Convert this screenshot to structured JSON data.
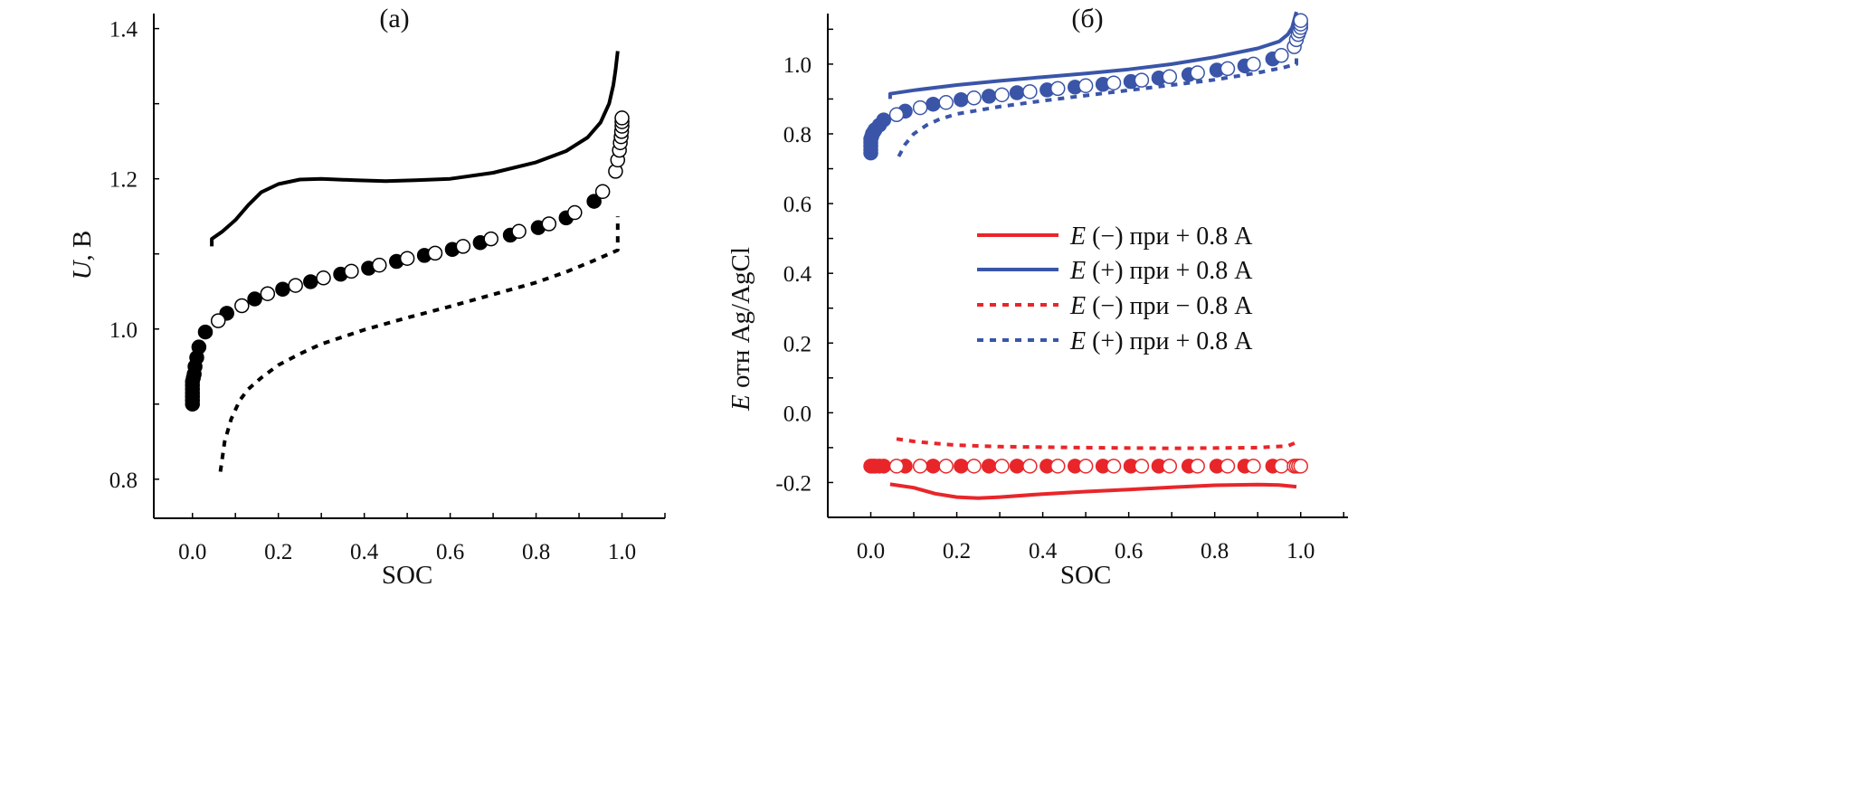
{
  "chart_data": [
    {
      "type": "line",
      "title": "(a)",
      "xlabel": "SOC",
      "ylabel": {
        "var": "U",
        "text": ", В"
      },
      "xlim": [
        -0.09,
        1.1
      ],
      "ylim": [
        0.748,
        1.42
      ],
      "xticks": [
        "0.0",
        "0.2",
        "0.4",
        "0.6",
        "0.8",
        "1.0"
      ],
      "yticks": [
        "0.8",
        "1.0",
        "1.2",
        "1.4"
      ],
      "grid": false,
      "colors": {
        "main": "#000000"
      },
      "series": [
        {
          "style": "solid",
          "color": "#000000",
          "x": [
            0.045,
            0.045,
            0.07,
            0.1,
            0.13,
            0.16,
            0.2,
            0.25,
            0.3,
            0.38,
            0.45,
            0.52,
            0.6,
            0.7,
            0.8,
            0.87,
            0.92,
            0.95,
            0.97,
            0.98,
            0.985,
            0.99
          ],
          "y": [
            1.11,
            1.12,
            1.13,
            1.145,
            1.165,
            1.182,
            1.193,
            1.199,
            1.2,
            1.198,
            1.197,
            1.198,
            1.2,
            1.208,
            1.222,
            1.237,
            1.255,
            1.275,
            1.3,
            1.325,
            1.345,
            1.37
          ]
        },
        {
          "style": "dotted",
          "color": "#000000",
          "x": [
            0.065,
            0.075,
            0.09,
            0.11,
            0.13,
            0.16,
            0.2,
            0.25,
            0.3,
            0.4,
            0.5,
            0.6,
            0.7,
            0.8,
            0.87,
            0.93,
            0.97,
            0.99,
            0.99
          ],
          "y": [
            0.81,
            0.85,
            0.88,
            0.905,
            0.92,
            0.935,
            0.952,
            0.967,
            0.98,
            0.999,
            1.015,
            1.03,
            1.046,
            1.062,
            1.076,
            1.09,
            1.1,
            1.105,
            1.15
          ]
        },
        {
          "style": "filled-markers",
          "color": "#000000",
          "x": [
            0,
            0,
            0,
            0,
            0,
            0,
            0,
            0.002,
            0.004,
            0.006,
            0.01,
            0.015,
            0.03,
            0.08,
            0.145,
            0.21,
            0.275,
            0.345,
            0.41,
            0.475,
            0.54,
            0.605,
            0.67,
            0.74,
            0.805,
            0.87,
            0.935
          ],
          "y": [
            0.9,
            0.905,
            0.91,
            0.915,
            0.92,
            0.925,
            0.93,
            0.935,
            0.94,
            0.95,
            0.962,
            0.976,
            0.996,
            1.021,
            1.04,
            1.053,
            1.063,
            1.073,
            1.081,
            1.09,
            1.098,
            1.106,
            1.115,
            1.125,
            1.135,
            1.148,
            1.17
          ]
        },
        {
          "style": "open-markers",
          "color": "#000000",
          "x": [
            0.06,
            0.115,
            0.175,
            0.24,
            0.305,
            0.37,
            0.435,
            0.5,
            0.565,
            0.63,
            0.695,
            0.76,
            0.83,
            0.89,
            0.955,
            0.985,
            0.99,
            0.994,
            0.996,
            0.998,
            0.999,
            1.0,
            1.0,
            1.0
          ],
          "y": [
            1.011,
            1.031,
            1.047,
            1.058,
            1.068,
            1.077,
            1.085,
            1.094,
            1.101,
            1.11,
            1.12,
            1.13,
            1.14,
            1.155,
            1.183,
            1.21,
            1.225,
            1.238,
            1.248,
            1.256,
            1.263,
            1.27,
            1.276,
            1.281
          ]
        }
      ]
    },
    {
      "type": "line",
      "title": "(б)",
      "xlabel": "SOC",
      "ylabel": {
        "var": "E",
        "text": " отн Ag/AgCl"
      },
      "xlim": [
        -0.1,
        1.11
      ],
      "ylim": [
        -0.3,
        1.145
      ],
      "xticks": [
        "0.0",
        "0.2",
        "0.4",
        "0.6",
        "0.8",
        "1.0"
      ],
      "yticks": [
        "-0.2",
        "0.0",
        "0.2",
        "0.4",
        "0.6",
        "0.8",
        "1.0"
      ],
      "grid": false,
      "legend_position": "center-right",
      "legend": [
        {
          "var": "E",
          "text": " (−) при + 0.8 A",
          "color": "#e8262a",
          "style": "solid"
        },
        {
          "var": "E",
          "text": " (+) при + 0.8 A",
          "color": "#3a55a8",
          "style": "solid"
        },
        {
          "var": "E",
          "text": " (−) при − 0.8 A",
          "color": "#e8262a",
          "style": "dotted"
        },
        {
          "var": "E",
          "text": " (+) при + 0.8 A",
          "color": "#3a55a8",
          "style": "dotted"
        }
      ],
      "series": [
        {
          "style": "solid",
          "color": "#e8262a",
          "x": [
            0.045,
            0.1,
            0.15,
            0.2,
            0.25,
            0.3,
            0.4,
            0.5,
            0.6,
            0.7,
            0.8,
            0.9,
            0.95,
            0.99
          ],
          "y": [
            -0.205,
            -0.215,
            -0.232,
            -0.242,
            -0.245,
            -0.242,
            -0.233,
            -0.226,
            -0.22,
            -0.214,
            -0.208,
            -0.206,
            -0.207,
            -0.212
          ]
        },
        {
          "style": "solid",
          "color": "#3a55a8",
          "x": [
            0.045,
            0.045,
            0.1,
            0.2,
            0.3,
            0.4,
            0.5,
            0.6,
            0.7,
            0.8,
            0.9,
            0.95,
            0.97,
            0.98,
            0.99
          ],
          "y": [
            0.9,
            0.915,
            0.925,
            0.94,
            0.952,
            0.963,
            0.973,
            0.985,
            1.0,
            1.02,
            1.045,
            1.065,
            1.085,
            1.105,
            1.15
          ]
        },
        {
          "style": "dotted",
          "color": "#e8262a",
          "x": [
            0.06,
            0.1,
            0.15,
            0.2,
            0.3,
            0.5,
            0.7,
            0.9,
            0.97,
            0.99
          ],
          "y": [
            -0.075,
            -0.082,
            -0.088,
            -0.093,
            -0.097,
            -0.1,
            -0.102,
            -0.1,
            -0.095,
            -0.085
          ]
        },
        {
          "style": "dotted",
          "color": "#3a55a8",
          "x": [
            0.065,
            0.08,
            0.1,
            0.13,
            0.16,
            0.2,
            0.3,
            0.4,
            0.5,
            0.6,
            0.7,
            0.8,
            0.9,
            0.96,
            0.99,
            0.99
          ],
          "y": [
            0.735,
            0.77,
            0.8,
            0.825,
            0.842,
            0.857,
            0.878,
            0.895,
            0.91,
            0.925,
            0.94,
            0.955,
            0.975,
            0.99,
            1.0,
            1.02
          ]
        },
        {
          "style": "filled-markers",
          "color": "#3a55a8",
          "x": [
            0,
            0,
            0,
            0,
            0,
            0.002,
            0.004,
            0.007,
            0.01,
            0.02,
            0.03,
            0.08,
            0.145,
            0.21,
            0.275,
            0.34,
            0.41,
            0.475,
            0.54,
            0.605,
            0.67,
            0.74,
            0.805,
            0.87,
            0.935
          ],
          "y": [
            0.745,
            0.755,
            0.765,
            0.775,
            0.785,
            0.792,
            0.8,
            0.806,
            0.812,
            0.825,
            0.84,
            0.865,
            0.885,
            0.898,
            0.908,
            0.918,
            0.926,
            0.934,
            0.942,
            0.95,
            0.96,
            0.97,
            0.983,
            0.995,
            1.015
          ]
        },
        {
          "style": "open-markers",
          "color": "#3a55a8",
          "x": [
            0.06,
            0.115,
            0.175,
            0.24,
            0.305,
            0.37,
            0.435,
            0.5,
            0.565,
            0.63,
            0.695,
            0.76,
            0.83,
            0.89,
            0.955,
            0.985,
            0.99,
            0.994,
            0.997,
            1.0,
            1.0,
            1.0
          ],
          "y": [
            0.855,
            0.875,
            0.89,
            0.903,
            0.912,
            0.921,
            0.93,
            0.938,
            0.946,
            0.954,
            0.964,
            0.975,
            0.987,
            1.0,
            1.025,
            1.05,
            1.07,
            1.085,
            1.095,
            1.105,
            1.115,
            1.125
          ]
        },
        {
          "style": "filled-markers",
          "color": "#e8262a",
          "x": [
            0,
            0.005,
            0.01,
            0.02,
            0.03,
            0.08,
            0.145,
            0.21,
            0.275,
            0.34,
            0.41,
            0.475,
            0.54,
            0.605,
            0.67,
            0.74,
            0.805,
            0.87,
            0.935
          ],
          "y": [
            -0.153,
            -0.153,
            -0.153,
            -0.153,
            -0.153,
            -0.153,
            -0.153,
            -0.153,
            -0.153,
            -0.153,
            -0.153,
            -0.153,
            -0.153,
            -0.153,
            -0.153,
            -0.153,
            -0.153,
            -0.153,
            -0.153
          ]
        },
        {
          "style": "open-markers",
          "color": "#e8262a",
          "x": [
            0.06,
            0.115,
            0.175,
            0.24,
            0.305,
            0.37,
            0.435,
            0.5,
            0.565,
            0.63,
            0.695,
            0.76,
            0.83,
            0.89,
            0.955,
            0.985,
            0.99,
            0.995,
            1.0
          ],
          "y": [
            -0.153,
            -0.153,
            -0.153,
            -0.153,
            -0.153,
            -0.153,
            -0.153,
            -0.153,
            -0.153,
            -0.153,
            -0.153,
            -0.153,
            -0.153,
            -0.153,
            -0.153,
            -0.153,
            -0.153,
            -0.153,
            -0.153
          ]
        }
      ]
    }
  ]
}
